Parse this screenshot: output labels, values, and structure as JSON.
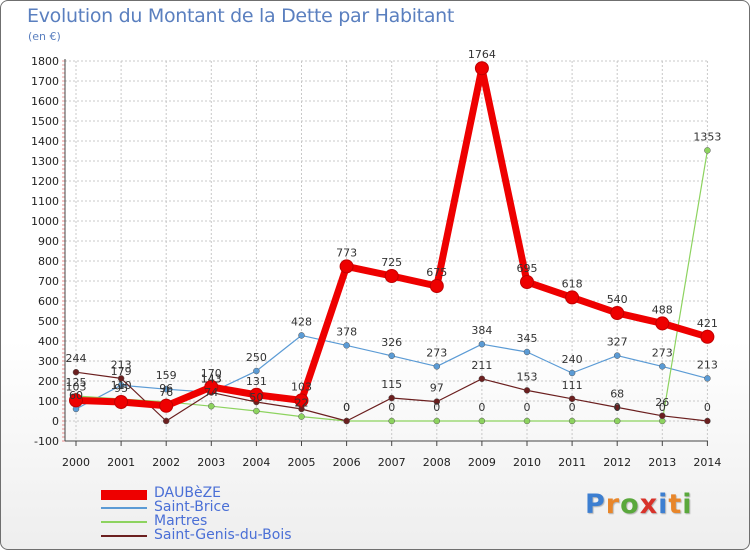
{
  "header": {
    "title": "Evolution du Montant de la Dette par Habitant",
    "subtitle": "(en €)"
  },
  "brand": {
    "letters": [
      "P",
      "r",
      "o",
      "x",
      "i",
      "t",
      "i"
    ],
    "colors": [
      "#3d7fd1",
      "#e8862a",
      "#5aa83c",
      "#d8322a",
      "#3d7fd1",
      "#e8862a",
      "#5aa83c"
    ]
  },
  "chart_data": {
    "type": "line",
    "title": "Evolution du Montant de la Dette par Habitant",
    "subtitle": "(en €)",
    "xlabel": "",
    "ylabel": "",
    "x": [
      "2000",
      "2001",
      "2002",
      "2003",
      "2004",
      "2005",
      "2006",
      "2007",
      "2008",
      "2009",
      "2010",
      "2011",
      "2012",
      "2013",
      "2014"
    ],
    "ylim": [
      -100,
      1800
    ],
    "yticks": [
      -100,
      0,
      100,
      200,
      300,
      400,
      500,
      600,
      700,
      800,
      900,
      1000,
      1100,
      1200,
      1300,
      1400,
      1500,
      1600,
      1700,
      1800
    ],
    "grid": true,
    "legend_position": "bottom-left",
    "series": [
      {
        "name": "DAUBèZE",
        "color": "#ee0000",
        "values": [
          103,
          95,
          76,
          170,
          131,
          103,
          773,
          725,
          675,
          1764,
          695,
          618,
          540,
          488,
          421
        ],
        "labels": [
          "103",
          "95",
          "76",
          "170",
          "131",
          "103",
          "773",
          "725",
          "675",
          "1764",
          "695",
          "618",
          "540",
          "488",
          "421"
        ]
      },
      {
        "name": "Saint-Brice",
        "color": "#5b9bd5",
        "values": [
          60,
          179,
          159,
          143,
          250,
          428,
          378,
          326,
          273,
          384,
          345,
          240,
          327,
          273,
          213
        ],
        "labels": [
          "60",
          "179",
          "159",
          "143",
          "250",
          "428",
          "378",
          "326",
          "273",
          "384",
          "345",
          "240",
          "327",
          "273",
          "213"
        ]
      },
      {
        "name": "Martres",
        "color": "#8dd35f",
        "values": [
          125,
          110,
          96,
          74,
          50,
          22,
          0,
          0,
          0,
          0,
          0,
          0,
          0,
          0,
          1353
        ],
        "labels": [
          "125",
          "110",
          "96",
          "74",
          "50",
          "22",
          "0",
          "0",
          "0",
          "0",
          "0",
          "0",
          "0",
          "0",
          "1353"
        ]
      },
      {
        "name": "Saint-Genis-du-Bois",
        "color": "#6b1f1f",
        "values": [
          244,
          213,
          0,
          143,
          95,
          60,
          0,
          115,
          97,
          211,
          153,
          111,
          68,
          26,
          0
        ],
        "labels": [
          "244",
          "213",
          "",
          "143",
          "",
          "",
          "0",
          "115",
          "97",
          "211",
          "153",
          "111",
          "68",
          "26",
          "0"
        ]
      }
    ]
  }
}
